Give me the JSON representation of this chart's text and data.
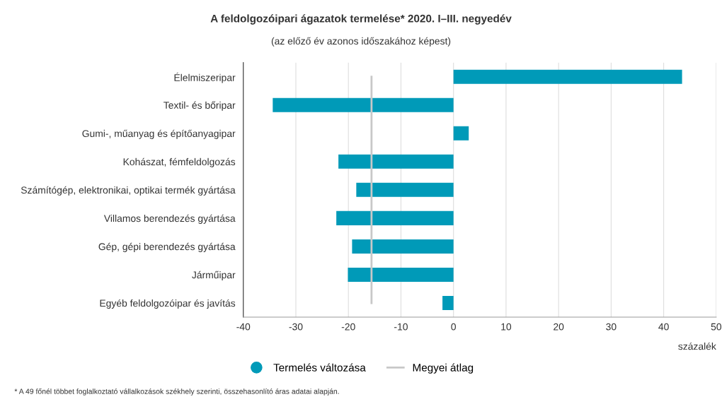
{
  "chart_data": {
    "type": "bar",
    "orientation": "horizontal",
    "title": "A feldolgozóipari ágazatok termelése* 2020. I–III. negyedév",
    "subtitle": "(az előző év azonos időszakához képest)",
    "xlabel": "százalék",
    "categories": [
      "Élelmiszeripar",
      "Textil- és bőripar",
      "Gumi-, műanyag és építőanyagipar",
      "Kohászat, fémfeldolgozás",
      "Számítógép, elektronikai, optikai termék gyártása",
      "Villamos berendezés gyártása",
      "Gép, gépi berendezés gyártása",
      "Járműipar",
      "Egyéb feldolgozóipar és javítás"
    ],
    "series": [
      {
        "name": "Termelés változása",
        "color": "#009ab8",
        "values": [
          43.5,
          -34.4,
          2.9,
          -21.9,
          -18.5,
          -22.3,
          -19.3,
          -20.1,
          -2.1
        ]
      }
    ],
    "ref_lines": [
      {
        "axis": "x",
        "value": -15.6,
        "label": "Megyei átlag",
        "color": "#c8c8c8"
      }
    ],
    "xlim": [
      -40,
      50
    ],
    "xticks": [
      -40,
      -30,
      -20,
      -10,
      0,
      10,
      20,
      30,
      40,
      50
    ],
    "grid": "x",
    "legend": "bottom",
    "annotations": [
      "* A 49 főnél többet foglalkoztató vállalkozások székhely szerinti, összehasonlító áras adatai alapján."
    ]
  }
}
